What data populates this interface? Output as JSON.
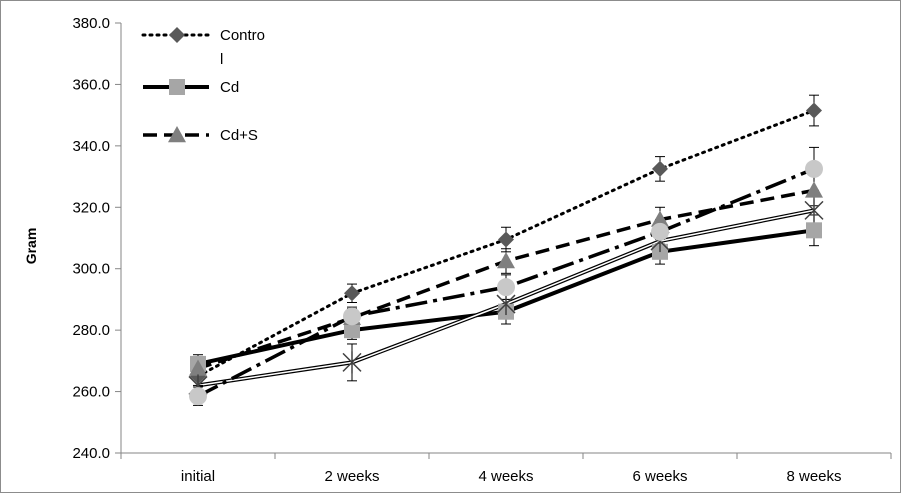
{
  "chart_data": {
    "type": "line",
    "categories": [
      "initial",
      "2 weeks",
      "4 weeks",
      "6 weeks",
      "8 weeks"
    ],
    "ylabel": "Gram",
    "xlabel": "",
    "ylim": [
      240,
      380
    ],
    "yticks": [
      "240.0",
      "260.0",
      "280.0",
      "300.0",
      "320.0",
      "340.0",
      "360.0",
      "380.0"
    ],
    "grid": false,
    "legend_position": "top-left",
    "series": [
      {
        "name": "Control",
        "legend_text_lines": [
          "Contro",
          "l"
        ],
        "values": [
          265,
          292,
          309.5,
          332.5,
          351.5
        ],
        "errors": [
          3,
          3,
          4,
          4,
          5
        ],
        "marker": "diamond",
        "color": "#595959",
        "line": "dotted"
      },
      {
        "name": "Cd",
        "legend_text_lines": [
          "Cd"
        ],
        "values": [
          269,
          280,
          286,
          305.5,
          312.5
        ],
        "errors": [
          3,
          3,
          4,
          4,
          5
        ],
        "marker": "square",
        "color": "#a6a6a6",
        "line": "solid-thick"
      },
      {
        "name": "Cd+S",
        "legend_text_lines": [
          "Cd+S"
        ],
        "values": [
          267.5,
          284,
          302.5,
          316,
          325.5
        ],
        "errors": [
          3,
          3,
          4,
          4,
          5
        ],
        "marker": "triangle",
        "color": "#7f7f7f",
        "line": "long-dash"
      },
      {
        "values": [
          262,
          269.5,
          288.5,
          309,
          319
        ],
        "errors": [
          3,
          6,
          4,
          4,
          5
        ],
        "marker": "star",
        "color": "#404040",
        "line": "double"
      },
      {
        "values": [
          258.5,
          284.5,
          294,
          312,
          332.5
        ],
        "errors": [
          3,
          3,
          4,
          4,
          7
        ],
        "marker": "circle",
        "color": "#c8c8c8",
        "line": "dash-dot"
      }
    ]
  }
}
